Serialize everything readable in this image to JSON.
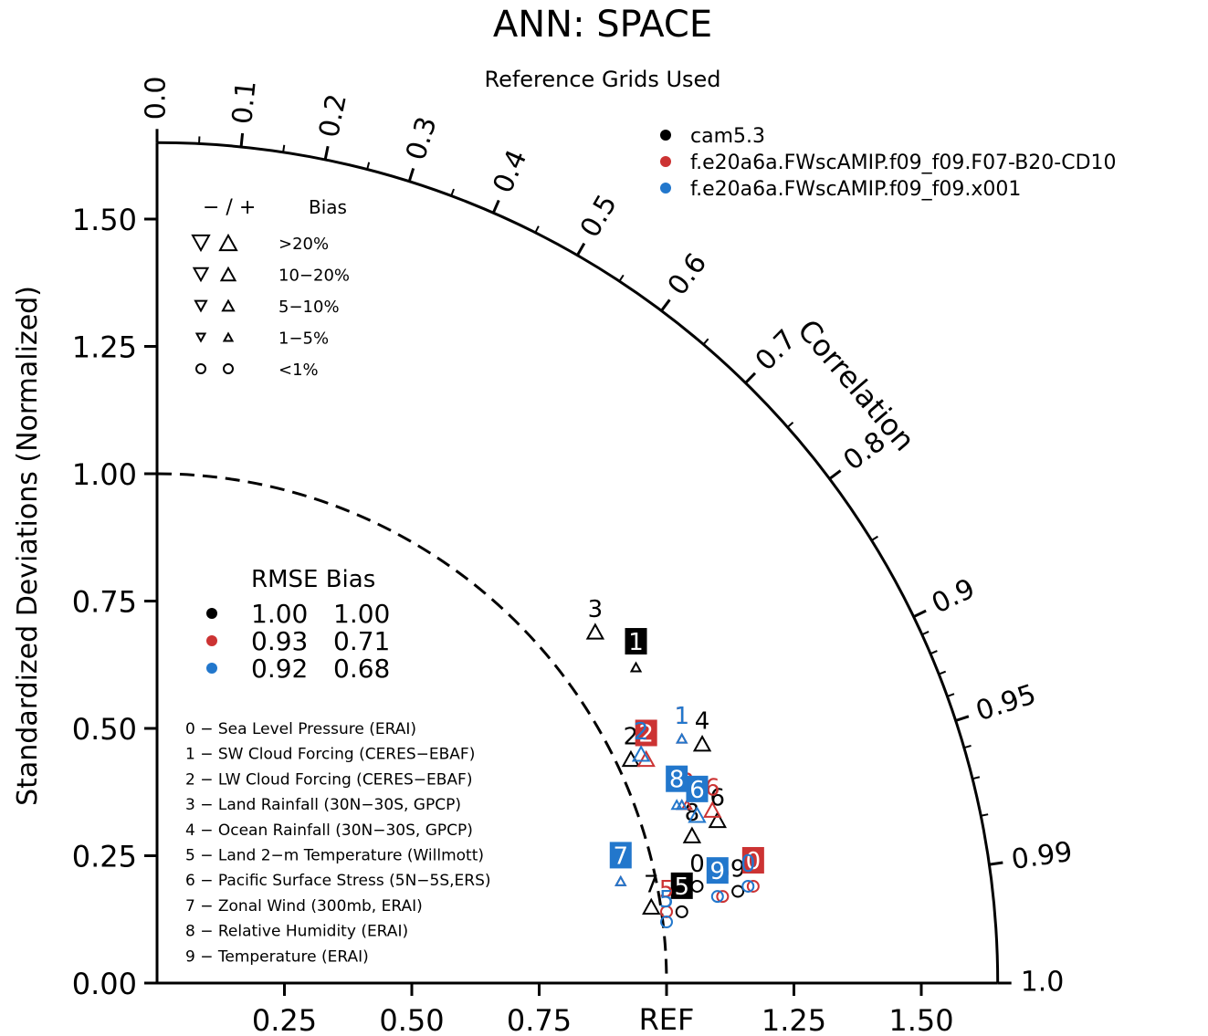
{
  "chart_data": {
    "type": "taylor",
    "title": "ANN: SPACE",
    "subtitle": "Reference Grids Used",
    "xlabel": "REF",
    "ylabel": "Standardized Deviations (Normalized)",
    "arc_label": "Correlation",
    "std_range": [
      0,
      1.65
    ],
    "std_ticks": [
      0.25,
      0.5,
      0.75,
      1.25,
      1.5
    ],
    "std_tick_labels": [
      "0.25",
      "0.50",
      "0.75",
      "1.25",
      "1.50"
    ],
    "y_ticks": [
      0,
      0.25,
      0.5,
      0.75,
      1.0,
      1.25,
      1.5
    ],
    "y_tick_labels": [
      "0.00",
      "0.25",
      "0.50",
      "0.75",
      "1.00",
      "1.25",
      "1.50"
    ],
    "correlation_ticks": [
      {
        "r": 0.0,
        "label": "0.0"
      },
      {
        "r": 0.1,
        "label": "0.1"
      },
      {
        "r": 0.2,
        "label": "0.2"
      },
      {
        "r": 0.3,
        "label": "0.3"
      },
      {
        "r": 0.4,
        "label": "0.4"
      },
      {
        "r": 0.5,
        "label": "0.5"
      },
      {
        "r": 0.6,
        "label": "0.6"
      },
      {
        "r": 0.7,
        "label": "0.7"
      },
      {
        "r": 0.8,
        "label": "0.8"
      },
      {
        "r": 0.9,
        "label": "0.9"
      },
      {
        "r": 0.95,
        "label": "0.95"
      },
      {
        "r": 0.99,
        "label": "0.99"
      },
      {
        "r": 1.0,
        "label": "1.0"
      }
    ],
    "minor_correlation_ticks": [
      0.05,
      0.15,
      0.25,
      0.35,
      0.45,
      0.55,
      0.65,
      0.75,
      0.85,
      0.91,
      0.92,
      0.93,
      0.94,
      0.96,
      0.97,
      0.98
    ],
    "reference_arc": 1.0,
    "series": [
      {
        "name": "cam5.3",
        "color": "#000000",
        "points": [
          {
            "id": "0",
            "x": 1.06,
            "y": 0.19,
            "marker": "circle",
            "boxed": false
          },
          {
            "id": "1",
            "x": 0.94,
            "y": 0.62,
            "marker": "triangle-up-small",
            "boxed": true
          },
          {
            "id": "2",
            "x": 0.93,
            "y": 0.44,
            "marker": "triangle-up",
            "boxed": false
          },
          {
            "id": "3",
            "x": 0.86,
            "y": 0.69,
            "marker": "triangle-up",
            "boxed": false
          },
          {
            "id": "4",
            "x": 1.07,
            "y": 0.47,
            "marker": "triangle-up",
            "boxed": false
          },
          {
            "id": "5",
            "x": 1.03,
            "y": 0.14,
            "marker": "circle",
            "boxed": true
          },
          {
            "id": "6",
            "x": 1.1,
            "y": 0.32,
            "marker": "triangle-up",
            "boxed": false
          },
          {
            "id": "7",
            "x": 0.97,
            "y": 0.15,
            "marker": "triangle-up",
            "boxed": false
          },
          {
            "id": "8",
            "x": 1.05,
            "y": 0.29,
            "marker": "triangle-up",
            "boxed": false
          },
          {
            "id": "9",
            "x": 1.14,
            "y": 0.18,
            "marker": "circle",
            "boxed": false
          }
        ]
      },
      {
        "name": "f.e20a6a.FWscAMIP.f09_f09.F07-B20-CD10",
        "color": "#cc3333",
        "points": [
          {
            "id": "0",
            "x": 1.17,
            "y": 0.19,
            "marker": "circle",
            "boxed": true
          },
          {
            "id": "1",
            "x": 1.03,
            "y": 0.48,
            "marker": "triangle-up-small",
            "boxed": false
          },
          {
            "id": "2",
            "x": 0.96,
            "y": 0.44,
            "marker": "triangle-up",
            "boxed": true
          },
          {
            "id": "3",
            "x": 1.04,
            "y": 0.35,
            "marker": "triangle-up-small",
            "boxed": false
          },
          {
            "id": "5",
            "x": 1.0,
            "y": 0.14,
            "marker": "circle",
            "boxed": false
          },
          {
            "id": "6",
            "x": 1.09,
            "y": 0.34,
            "marker": "triangle-up",
            "boxed": false
          },
          {
            "id": "7",
            "x": 0.91,
            "y": 0.2,
            "marker": "triangle-up-small",
            "boxed": false
          },
          {
            "id": "8",
            "x": 1.03,
            "y": 0.35,
            "marker": "triangle-up-small",
            "boxed": false
          },
          {
            "id": "9",
            "x": 1.11,
            "y": 0.17,
            "marker": "circle",
            "boxed": false
          }
        ]
      },
      {
        "name": "f.e20a6a.FWscAMIP.f09_f09.x001",
        "color": "#2277cc",
        "points": [
          {
            "id": "0",
            "x": 1.16,
            "y": 0.19,
            "marker": "circle",
            "boxed": false
          },
          {
            "id": "1",
            "x": 1.03,
            "y": 0.48,
            "marker": "triangle-up-small",
            "boxed": false
          },
          {
            "id": "2",
            "x": 0.95,
            "y": 0.45,
            "marker": "triangle-up",
            "boxed": false
          },
          {
            "id": "3",
            "x": 1.03,
            "y": 0.35,
            "marker": "triangle-up-small",
            "boxed": false
          },
          {
            "id": "5",
            "x": 1.0,
            "y": 0.12,
            "marker": "circle",
            "boxed": false
          },
          {
            "id": "6",
            "x": 1.06,
            "y": 0.33,
            "marker": "triangle-up",
            "boxed": true
          },
          {
            "id": "7",
            "x": 0.91,
            "y": 0.2,
            "marker": "triangle-up-small",
            "boxed": true
          },
          {
            "id": "8",
            "x": 1.02,
            "y": 0.35,
            "marker": "triangle-up-small",
            "boxed": true
          },
          {
            "id": "9",
            "x": 1.1,
            "y": 0.17,
            "marker": "circle",
            "boxed": true
          }
        ]
      }
    ],
    "bias_legend": {
      "header_sign": "−  /  +",
      "header_label": "Bias",
      "rows": [
        {
          "label": ">20%",
          "size": 18
        },
        {
          "label": "10−20%",
          "size": 15
        },
        {
          "label": "5−10%",
          "size": 12
        },
        {
          "label": "1−5%",
          "size": 9
        },
        {
          "label": "<1%",
          "size": 10,
          "circle": true
        }
      ]
    },
    "rmse_table": {
      "header": "RMSE  Bias",
      "rows": [
        {
          "color": "#000000",
          "rmse": "1.00",
          "bias": "1.00"
        },
        {
          "color": "#cc3333",
          "rmse": "0.93",
          "bias": "0.71"
        },
        {
          "color": "#2277cc",
          "rmse": "0.92",
          "bias": "0.68"
        }
      ]
    },
    "variables": [
      "0 − Sea Level Pressure (ERAI)",
      "1 − SW Cloud Forcing (CERES−EBAF)",
      "2 − LW Cloud Forcing (CERES−EBAF)",
      "3 − Land Rainfall (30N−30S, GPCP)",
      "4 − Ocean Rainfall (30N−30S, GPCP)",
      "5 − Land 2−m Temperature (Willmott)",
      "6 − Pacific Surface Stress (5N−5S,ERS)",
      "7 − Zonal Wind (300mb, ERAI)",
      "8 − Relative Humidity (ERAI)",
      "9 − Temperature (ERAI)"
    ]
  }
}
